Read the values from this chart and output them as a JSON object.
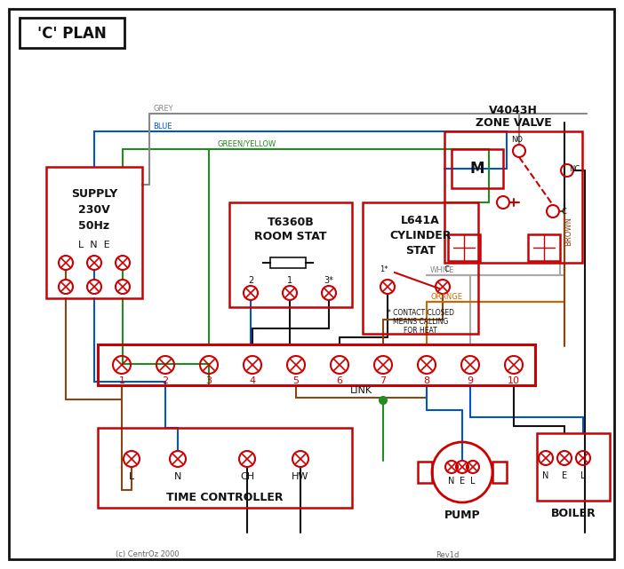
{
  "title": "'C' PLAN",
  "bg_color": "#ffffff",
  "border_color": "#111111",
  "red": "#cc0000",
  "wire_grey": "#888888",
  "wire_blue": "#0055cc",
  "wire_gy": "#228B22",
  "wire_brown": "#8B4513",
  "wire_white": "#aaaaaa",
  "wire_orange": "#cc6600",
  "wire_black": "#111111",
  "wire_green": "#228B22",
  "copyright": "(c) CentrOz 2000",
  "rev": "Rev1d"
}
